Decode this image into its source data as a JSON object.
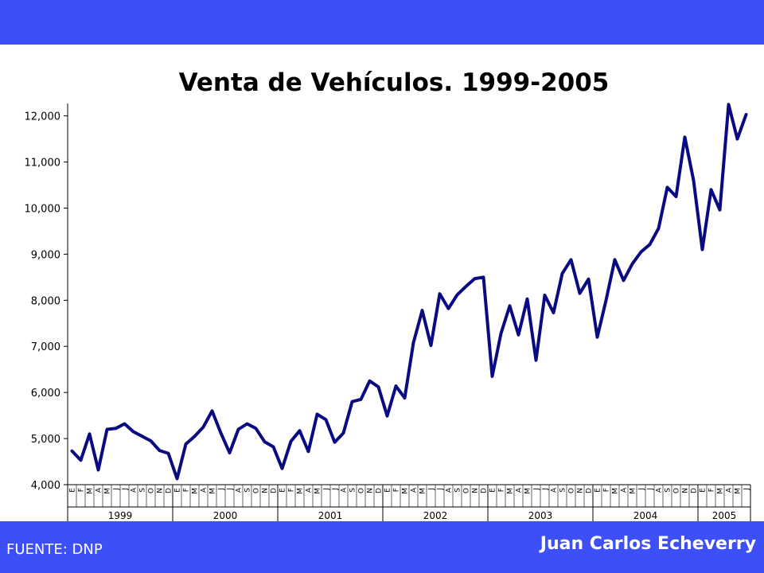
{
  "header": {
    "title": "Venta de Vehículos. 1999-2005"
  },
  "footer": {
    "source": "FUENTE: DNP",
    "author": "Juan Carlos Echeverry"
  },
  "colors": {
    "bar": "#3d4ff7",
    "line": "#0a0a82",
    "axis": "#000000"
  },
  "chart_data": {
    "type": "line",
    "title": "Venta de Vehículos. 1999-2005",
    "xlabel": "",
    "ylabel": "",
    "ylim": [
      4000,
      12000
    ],
    "yticks": [
      4000,
      5000,
      6000,
      7000,
      8000,
      9000,
      10000,
      11000,
      12000
    ],
    "ytick_labels": [
      "4,000",
      "5,000",
      "6,000",
      "7,000",
      "8,000",
      "9,000",
      "10,000",
      "11,000",
      "12,000"
    ],
    "grid": false,
    "legend": "none",
    "month_labels": [
      "E",
      "F",
      "M",
      "A",
      "M",
      "J",
      "J",
      "A",
      "S",
      "O",
      "N",
      "D"
    ],
    "years": [
      {
        "label": "1999",
        "months": 12
      },
      {
        "label": "2000",
        "months": 12
      },
      {
        "label": "2001",
        "months": 12
      },
      {
        "label": "2002",
        "months": 12
      },
      {
        "label": "2003",
        "months": 12
      },
      {
        "label": "2004",
        "months": 12
      },
      {
        "label": "2005",
        "months": 6
      }
    ],
    "series": [
      {
        "values": [
          4730,
          4530,
          5100,
          4320,
          5200,
          5220,
          5320,
          5150,
          5050,
          4950,
          4740,
          4680,
          4130,
          4880,
          5050,
          5250,
          5600,
          5120,
          4690,
          5200,
          5320,
          5220,
          4930,
          4820,
          4350,
          4940,
          5170,
          4720,
          5530,
          5410,
          4920,
          5120,
          5800,
          5850,
          6250,
          6120,
          5490,
          6140,
          5880,
          7080,
          7780,
          7020,
          8140,
          7820,
          8120,
          8300,
          8470,
          8500,
          6350,
          7280,
          7880,
          7250,
          8030,
          6700,
          8110,
          7730,
          8580,
          8880,
          8150,
          8460,
          7200,
          8000,
          8880,
          8430,
          8790,
          9050,
          9210,
          9560,
          10450,
          10250,
          11540,
          10600,
          9100,
          10400,
          9960,
          12250,
          11500,
          12030
        ]
      }
    ]
  }
}
